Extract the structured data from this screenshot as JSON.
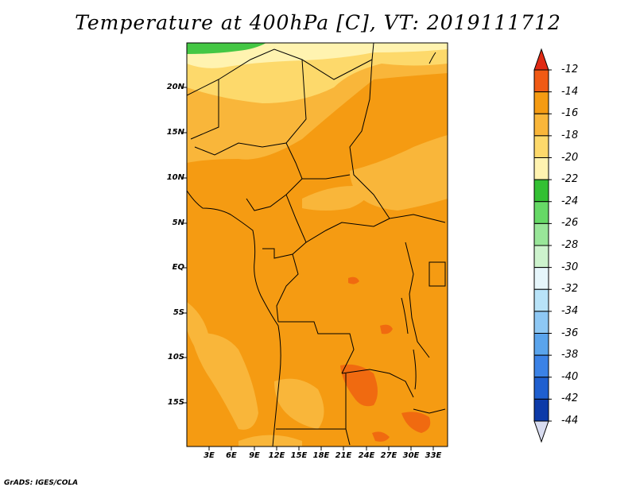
{
  "title": "Temperature at 400hPa [C], VT: 2019111712",
  "credit": "GrADS: IGES/COLA",
  "map": {
    "lat_ticks": [
      "20N",
      "15N",
      "10N",
      "5N",
      "EQ",
      "5S",
      "10S",
      "15S"
    ],
    "lon_ticks": [
      "3E",
      "6E",
      "9E",
      "12E",
      "15E",
      "18E",
      "21E",
      "24E",
      "27E",
      "30E",
      "33E"
    ],
    "dominant_range": "-16 to -14",
    "colors": {
      "cold_green": "#44c744",
      "pale_yellow": "#fff3b0",
      "light_orange": "#fdd96b",
      "mid_orange": "#f9b63a",
      "orange": "#f59b12",
      "dark_orange": "#f06a10",
      "border": "#000000"
    }
  },
  "colorbar": {
    "labels": [
      "-12",
      "-14",
      "-16",
      "-18",
      "-20",
      "-22",
      "-24",
      "-26",
      "-28",
      "-30",
      "-32",
      "-34",
      "-36",
      "-38",
      "-40",
      "-42",
      "-44"
    ],
    "colors": [
      "#f05a14",
      "#f59b12",
      "#f9b63a",
      "#fdd96b",
      "#fff3b0",
      "#33c033",
      "#66d966",
      "#99e699",
      "#cdf3cd",
      "#e6f6fb",
      "#b8e3f8",
      "#8ec8f4",
      "#5aa4ec",
      "#3b82e6",
      "#1f5fcf",
      "#0c3aa8",
      "#0a1a6e"
    ],
    "top_cap_color": "#e02a14",
    "bottom_cap_color": "#d8dcf0"
  }
}
